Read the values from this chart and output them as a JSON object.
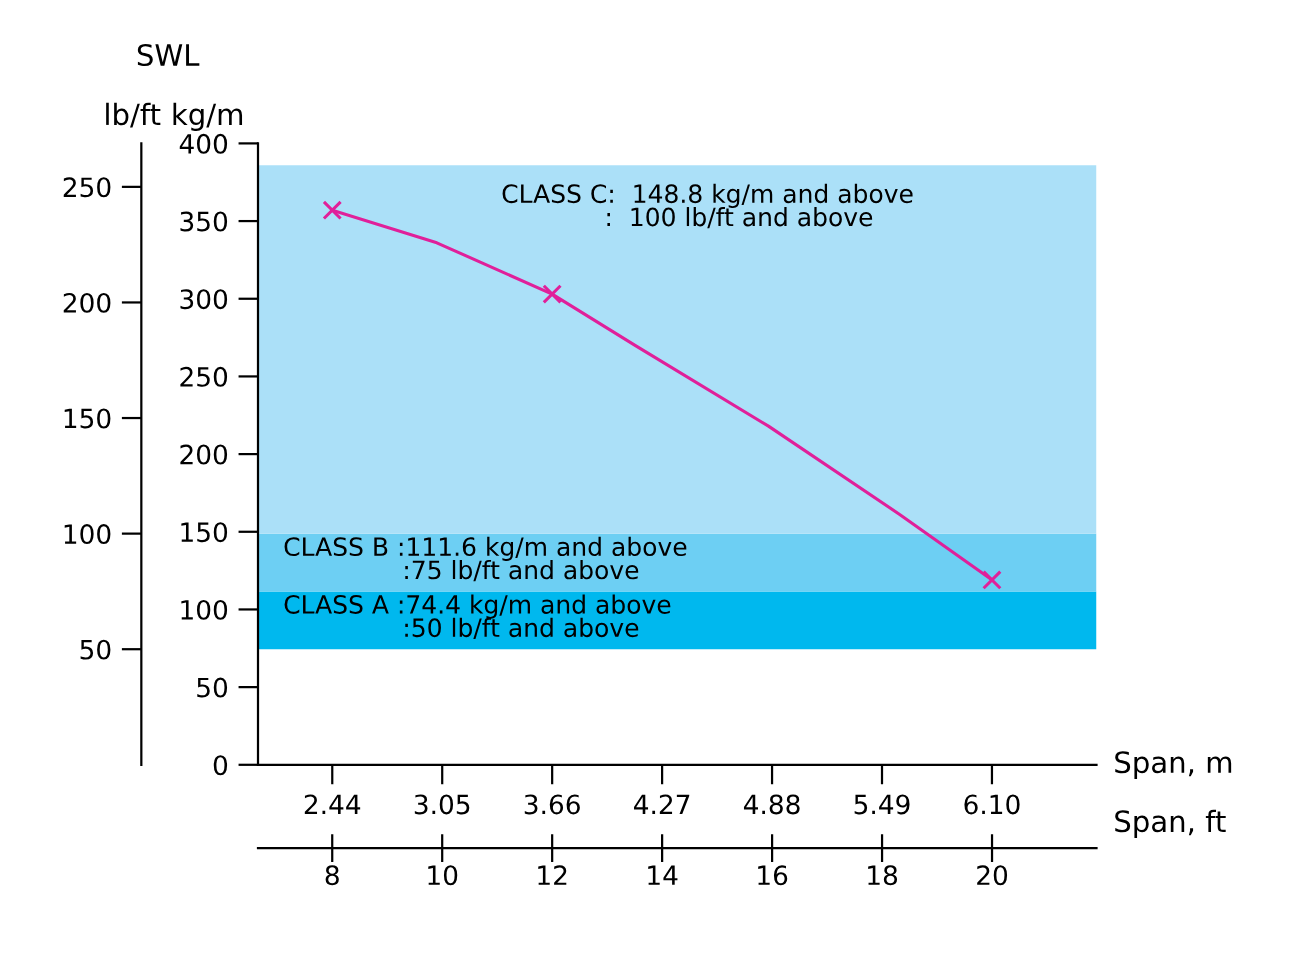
{
  "chart_data": {
    "type": "line",
    "title": "SWL",
    "ylabel": "kg/m",
    "y2label": "lb/ft",
    "xlabel": "Span, m",
    "x2label": "Span, ft",
    "series": [
      {
        "marker": "none",
        "color": "#e0209a",
        "x": [
          2.44,
          3.02,
          3.66,
          4.12,
          4.86,
          5.59,
          6.1
        ],
        "values": [
          357,
          336,
          303,
          270,
          218,
          161,
          119
        ]
      },
      {
        "type": "scatter",
        "marker": "cross",
        "color": "#e0209a",
        "x": [
          2.44,
          3.66,
          6.1
        ],
        "values": [
          357,
          303,
          119
        ]
      }
    ],
    "line_style": "solid",
    "grid": false,
    "legend": false,
    "xlim": [
      2.028,
      6.68
    ],
    "xticks": [
      {
        "value": 2.44,
        "label": "2.44"
      },
      {
        "value": 3.05,
        "label": "3.05"
      },
      {
        "value": 3.66,
        "label": "3.66"
      },
      {
        "value": 4.27,
        "label": "4.27"
      },
      {
        "value": 4.88,
        "label": "4.88"
      },
      {
        "value": 5.49,
        "label": "5.49"
      },
      {
        "value": 6.1,
        "label": "6.10"
      }
    ],
    "x2lim": [
      6.65,
      21.9
    ],
    "x2ticks": [
      8,
      10,
      12,
      14,
      16,
      18,
      20
    ],
    "ylim": [
      0,
      400
    ],
    "yticks": [
      0,
      50,
      100,
      150,
      200,
      250,
      300,
      350,
      400
    ],
    "y2lim": [
      0,
      268.8
    ],
    "y2ticks": [
      50,
      100,
      150,
      200,
      250
    ],
    "bands": [
      {
        "axis": "y",
        "from": 74.4,
        "to": 111.6,
        "color": "#00b8ee",
        "label": "CLASS A :74.4 kg/m and above\n               :50 lb/ft and above"
      },
      {
        "axis": "y",
        "from": 111.6,
        "to": 148.8,
        "color": "#6dcff3",
        "label": "CLASS B :111.6 kg/m and above\n               :75 lb/ft and above"
      },
      {
        "axis": "y",
        "from": 148.8,
        "to": 386,
        "color": "#abe0f8",
        "label": "CLASS C:  148.8 kg/m and above\n             :  100 lb/ft and above"
      }
    ]
  }
}
